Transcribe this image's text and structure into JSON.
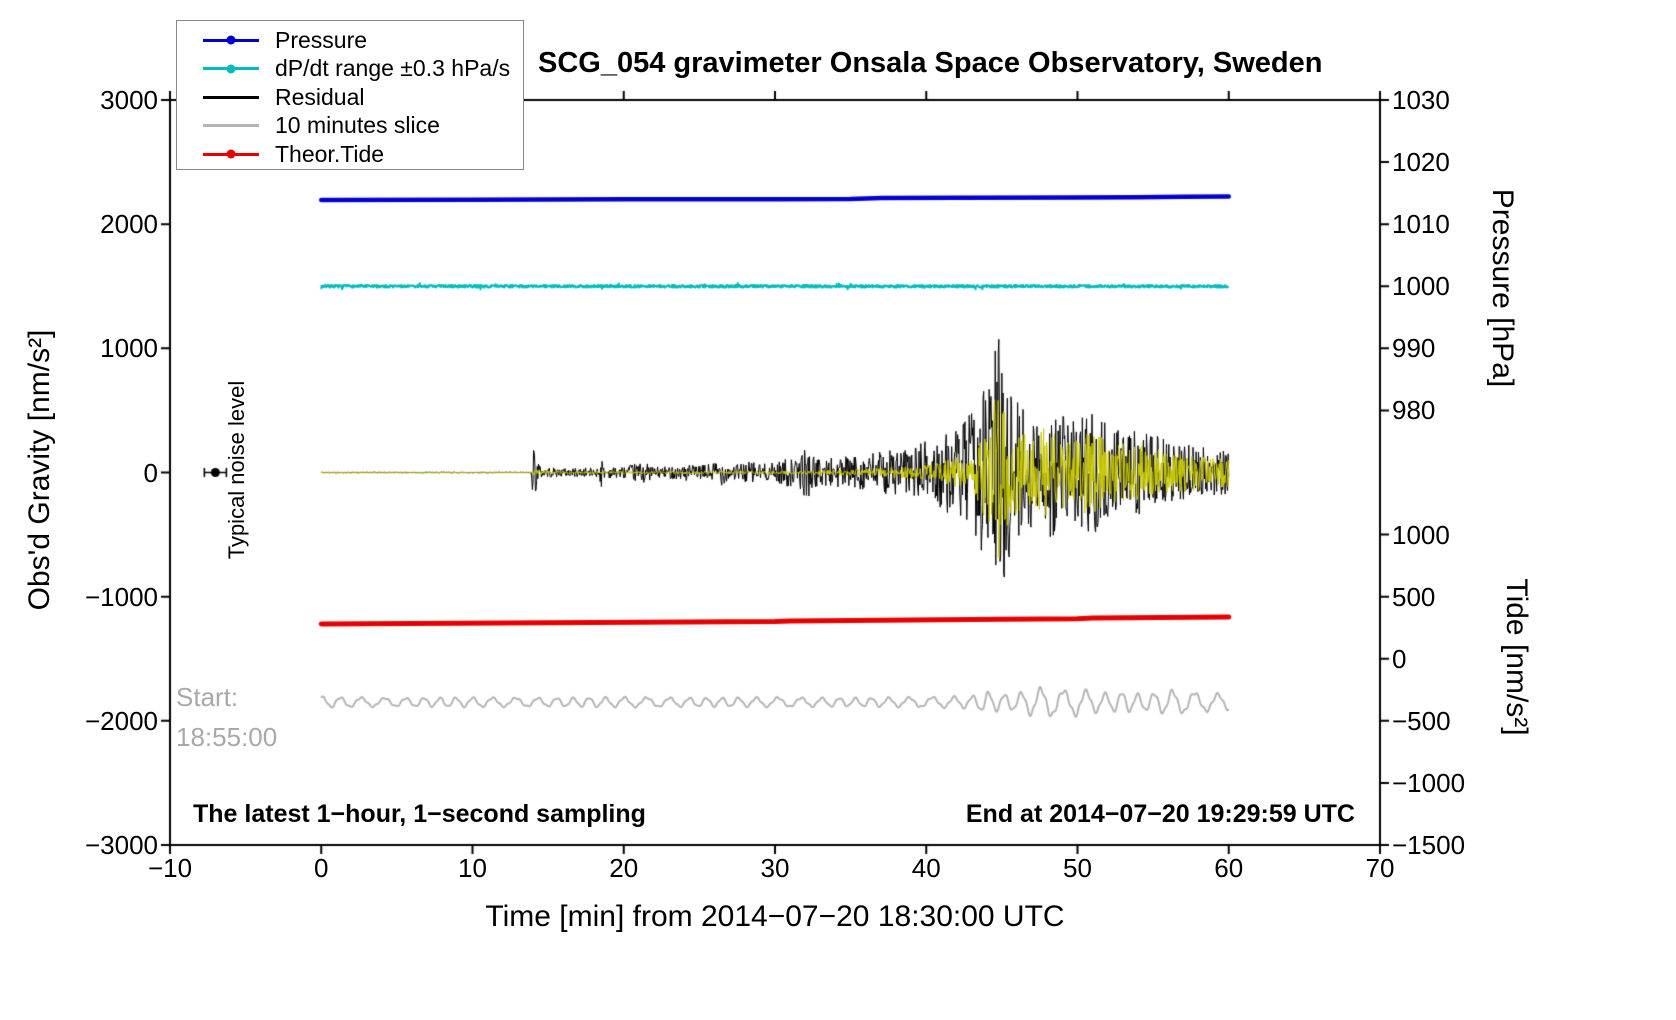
{
  "chart_data": {
    "type": "line",
    "title": "SCG_054 gravimeter Onsala Space Observatory, Sweden",
    "xlabel": "Time [min] from 2014−07−20 18:30:00 UTC",
    "ylabel_left": "Obs'd Gravity [nm/s²]",
    "ylabel_right_pressure": "Pressure [hPa]",
    "ylabel_right_tide": "Tide [nm/s²]",
    "xlim": [
      -10,
      70
    ],
    "ylim_gravity": [
      -3000,
      3000
    ],
    "x_ticks": [
      -10,
      0,
      10,
      20,
      30,
      40,
      50,
      60,
      70
    ],
    "gravity_ticks": [
      -3000,
      -2000,
      -1000,
      0,
      1000,
      2000,
      3000
    ],
    "pressure_axis": {
      "ticks": [
        1030,
        1020,
        1010,
        1000,
        990,
        980
      ],
      "scale": 50,
      "offset": -48500
    },
    "tide_axis": {
      "ticks": [
        1000,
        500,
        0,
        -500,
        -1000,
        -1500
      ],
      "scale": 1,
      "offset": -1500
    },
    "grid": false,
    "legend_position": "top-left",
    "legend": [
      {
        "label": "Pressure",
        "color": "#0000d0",
        "marker": true
      },
      {
        "label": "dP/dt range ±0.3 hPa/s",
        "color": "#00bcbc",
        "marker": true
      },
      {
        "label": "Residual",
        "color": "#000000",
        "marker": false
      },
      {
        "label": "10 minutes slice",
        "color": "#b4b4b4",
        "marker": false
      },
      {
        "label": "Theor.Tide",
        "color": "#e60000",
        "marker": true
      }
    ],
    "annotations": {
      "noise_label": "Typical noise level",
      "noise_marker": {
        "x": -7,
        "gravity": 0
      },
      "start_label": "Start:",
      "start_time": "18:55:00",
      "footer_left": "The latest 1−hour, 1−second sampling",
      "footer_right": "End at 2014−07−20 19:29:59 UTC"
    },
    "series": {
      "pressure_hpa": {
        "name": "Pressure",
        "color": "#0000d0",
        "width": 4.5,
        "unit": "hPa",
        "points": [
          [
            0,
            1013.9
          ],
          [
            10,
            1013.95
          ],
          [
            20,
            1014.0
          ],
          [
            30,
            1014.0
          ],
          [
            35,
            1014.05
          ],
          [
            37,
            1014.2
          ],
          [
            42,
            1014.25
          ],
          [
            50,
            1014.3
          ],
          [
            54,
            1014.35
          ],
          [
            57,
            1014.4
          ],
          [
            60,
            1014.45
          ]
        ]
      },
      "dpdt_range": {
        "name": "dP/dt range ±0.3 hPa/s",
        "color": "#00bcbc",
        "width": 2,
        "center_gravity": 1500,
        "noise_amplitude": 11
      },
      "residual": {
        "name": "Residual",
        "color": "#000000",
        "width": 1,
        "envelope": [
          [
            0,
            4
          ],
          [
            13.9,
            4
          ],
          [
            14.0,
            300
          ],
          [
            14.2,
            150
          ],
          [
            14.5,
            45
          ],
          [
            16,
            35
          ],
          [
            18.4,
            40
          ],
          [
            18.5,
            140
          ],
          [
            18.7,
            45
          ],
          [
            20,
            45
          ],
          [
            21.3,
            90
          ],
          [
            22,
            45
          ],
          [
            23.9,
            55
          ],
          [
            24.0,
            250
          ],
          [
            24.15,
            70
          ],
          [
            25,
            50
          ],
          [
            26.4,
            110
          ],
          [
            27,
            60
          ],
          [
            28.6,
            95
          ],
          [
            29.5,
            65
          ],
          [
            30.9,
            120
          ],
          [
            31.5,
            90
          ],
          [
            32.1,
            230
          ],
          [
            32.5,
            130
          ],
          [
            33,
            110
          ],
          [
            34,
            140
          ],
          [
            35,
            130
          ],
          [
            36,
            150
          ],
          [
            37,
            170
          ],
          [
            38,
            200
          ],
          [
            39,
            190
          ],
          [
            40,
            260
          ],
          [
            41,
            300
          ],
          [
            42,
            360
          ],
          [
            43,
            480
          ],
          [
            44,
            750
          ],
          [
            44.8,
            1200
          ],
          [
            45.1,
            950
          ],
          [
            45.5,
            720
          ],
          [
            46,
            600
          ],
          [
            46.6,
            500
          ],
          [
            47.2,
            430
          ],
          [
            48,
            520
          ],
          [
            48.6,
            660
          ],
          [
            49.2,
            480
          ],
          [
            50,
            380
          ],
          [
            50.6,
            620
          ],
          [
            51.2,
            500
          ],
          [
            52,
            380
          ],
          [
            53,
            320
          ],
          [
            54,
            360
          ],
          [
            55,
            310
          ],
          [
            56,
            260
          ],
          [
            57,
            230
          ],
          [
            58,
            210
          ],
          [
            59,
            190
          ],
          [
            60,
            170
          ]
        ]
      },
      "residual_highlight": {
        "name": "Residual latest slice highlight",
        "color": "#c9c900",
        "width": 1,
        "envelope": [
          [
            0,
            3
          ],
          [
            14,
            3
          ],
          [
            14.1,
            30
          ],
          [
            15,
            10
          ],
          [
            30,
            12
          ],
          [
            35,
            25
          ],
          [
            40,
            60
          ],
          [
            43,
            150
          ],
          [
            44,
            400
          ],
          [
            44.8,
            700
          ],
          [
            45.3,
            500
          ],
          [
            46,
            380
          ],
          [
            47,
            300
          ],
          [
            48,
            380
          ],
          [
            49,
            300
          ],
          [
            50,
            260
          ],
          [
            50.6,
            380
          ],
          [
            51.5,
            300
          ],
          [
            52,
            250
          ],
          [
            54,
            230
          ],
          [
            56,
            180
          ],
          [
            58,
            140
          ],
          [
            60,
            120
          ]
        ]
      },
      "theor_tide": {
        "name": "Theor.Tide",
        "color": "#e60000",
        "width": 5,
        "unit": "nm/s²",
        "points": [
          [
            0,
            280
          ],
          [
            15,
            290
          ],
          [
            30,
            300
          ],
          [
            31,
            305
          ],
          [
            45,
            318
          ],
          [
            50,
            322
          ],
          [
            51,
            328
          ],
          [
            60,
            336
          ]
        ]
      },
      "slice_10min": {
        "name": "10 minutes slice",
        "color": "#b4b4b4",
        "width": 2,
        "center_gravity": -1850,
        "frequency_per_min": 0.8,
        "amp_envelope": [
          [
            0,
            40
          ],
          [
            5,
            32
          ],
          [
            10,
            36
          ],
          [
            15,
            32
          ],
          [
            20,
            38
          ],
          [
            25,
            33
          ],
          [
            30,
            36
          ],
          [
            35,
            32
          ],
          [
            40,
            38
          ],
          [
            43,
            45
          ],
          [
            44,
            80
          ],
          [
            45,
            58
          ],
          [
            46,
            65
          ],
          [
            47,
            100
          ],
          [
            48,
            112
          ],
          [
            49,
            88
          ],
          [
            50,
            102
          ],
          [
            51,
            78
          ],
          [
            52,
            66
          ],
          [
            53,
            78
          ],
          [
            54,
            62
          ],
          [
            55,
            68
          ],
          [
            56,
            92
          ],
          [
            57,
            82
          ],
          [
            58,
            72
          ],
          [
            59,
            66
          ],
          [
            60,
            56
          ]
        ]
      }
    }
  }
}
